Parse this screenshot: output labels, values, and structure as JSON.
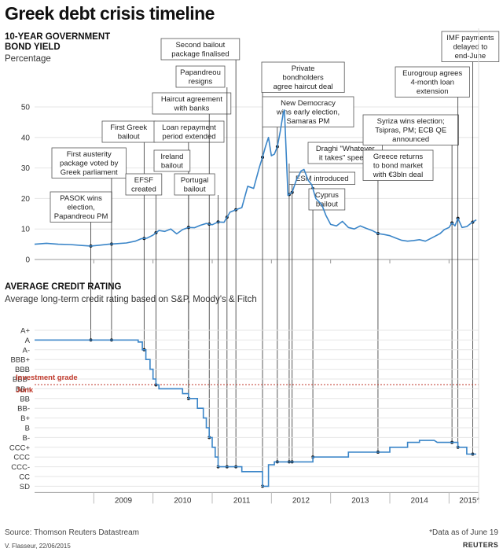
{
  "title": "Greek debt crisis timeline",
  "yield_panel": {
    "heading_line1": "10-YEAR GOVERNMENT",
    "heading_line2": "BOND YIELD",
    "unit": "Percentage"
  },
  "rating_panel": {
    "heading": "AVERAGE CREDIT RATING",
    "subheading": "Average long-term credit rating based on S&P, Moody's & Fitch",
    "investment_grade_label": "Investment grade",
    "junk_label": "Junk"
  },
  "source": "Source: Thomson Reuters Datastream",
  "data_note": "*Data as of June 19",
  "credit": "V. Flasseur, 22/06/2015",
  "logo_text": "REUTERS",
  "colors": {
    "line": "#3a85c8",
    "threshold": "#c0392b",
    "annotation": "#333333",
    "grid": "#e6e6e6"
  },
  "chart_data": [
    {
      "type": "line",
      "title": "10-YEAR GOVERNMENT BOND YIELD",
      "ylabel": "Percentage",
      "yticks": [
        0,
        10,
        20,
        30,
        40,
        50
      ],
      "ylim": [
        0,
        50
      ],
      "xlim": [
        2008.0,
        2015.5
      ],
      "xticks": [
        "2009",
        "2010",
        "2011",
        "2012",
        "2013",
        "2014",
        "2015*"
      ],
      "series": [
        {
          "values": [
            [
              2008.0,
              5.0
            ],
            [
              2008.2,
              5.3
            ],
            [
              2008.4,
              5.0
            ],
            [
              2008.6,
              4.9
            ],
            [
              2008.8,
              4.6
            ],
            [
              2008.95,
              4.4
            ],
            [
              2009.1,
              4.7
            ],
            [
              2009.25,
              5.0
            ],
            [
              2009.4,
              5.2
            ],
            [
              2009.55,
              5.4
            ],
            [
              2009.7,
              6.0
            ],
            [
              2009.8,
              6.8
            ],
            [
              2009.9,
              7.0
            ],
            [
              2010.0,
              8.0
            ],
            [
              2010.1,
              9.5
            ],
            [
              2010.2,
              9.2
            ],
            [
              2010.3,
              10.0
            ],
            [
              2010.4,
              8.4
            ],
            [
              2010.5,
              9.8
            ],
            [
              2010.6,
              10.5
            ],
            [
              2010.7,
              10.4
            ],
            [
              2010.8,
              11.2
            ],
            [
              2010.9,
              11.8
            ],
            [
              2011.0,
              11.4
            ],
            [
              2011.1,
              12.3
            ],
            [
              2011.2,
              12.2
            ],
            [
              2011.3,
              15.5
            ],
            [
              2011.4,
              16.3
            ],
            [
              2011.5,
              17.0
            ],
            [
              2011.6,
              24.0
            ],
            [
              2011.7,
              23.3
            ],
            [
              2011.8,
              30.5
            ],
            [
              2011.85,
              33.5
            ],
            [
              2011.9,
              37.0
            ],
            [
              2011.95,
              40.0
            ],
            [
              2012.0,
              34.0
            ],
            [
              2012.05,
              34.5
            ],
            [
              2012.1,
              37.0
            ],
            [
              2012.15,
              42.0
            ],
            [
              2012.2,
              48.0
            ],
            [
              2012.22,
              49.0
            ],
            [
              2012.28,
              21.0
            ],
            [
              2012.35,
              22.0
            ],
            [
              2012.42,
              26.0
            ],
            [
              2012.5,
              29.0
            ],
            [
              2012.55,
              29.5
            ],
            [
              2012.62,
              26.0
            ],
            [
              2012.68,
              24.5
            ],
            [
              2012.75,
              20.0
            ],
            [
              2012.85,
              18.0
            ],
            [
              2012.92,
              14.5
            ],
            [
              2013.0,
              11.5
            ],
            [
              2013.1,
              11.0
            ],
            [
              2013.2,
              12.5
            ],
            [
              2013.3,
              10.5
            ],
            [
              2013.4,
              10.0
            ],
            [
              2013.5,
              11.0
            ],
            [
              2013.6,
              10.2
            ],
            [
              2013.7,
              9.5
            ],
            [
              2013.8,
              8.5
            ],
            [
              2013.9,
              8.2
            ],
            [
              2014.0,
              7.8
            ],
            [
              2014.1,
              7.0
            ],
            [
              2014.2,
              6.3
            ],
            [
              2014.3,
              6.0
            ],
            [
              2014.4,
              6.2
            ],
            [
              2014.5,
              6.5
            ],
            [
              2014.6,
              6.0
            ],
            [
              2014.65,
              6.5
            ],
            [
              2014.75,
              7.5
            ],
            [
              2014.85,
              8.5
            ],
            [
              2014.92,
              9.8
            ],
            [
              2015.0,
              10.5
            ],
            [
              2015.05,
              12.0
            ],
            [
              2015.1,
              11.0
            ],
            [
              2015.15,
              13.5
            ],
            [
              2015.22,
              10.5
            ],
            [
              2015.3,
              10.8
            ],
            [
              2015.38,
              12.0
            ],
            [
              2015.46,
              13.0
            ]
          ]
        }
      ],
      "annotations": [
        {
          "x": 2008.95,
          "text": [
            "PASOK wins",
            "election,",
            "Papandreou PM"
          ]
        },
        {
          "x": 2009.3,
          "text": [
            "First austerity",
            "package voted by",
            "Greek parliament"
          ]
        },
        {
          "x": 2009.85,
          "text": [
            "First Greek",
            "bailout"
          ]
        },
        {
          "x": 2010.05,
          "text": [
            "EFSF",
            "created"
          ]
        },
        {
          "x": 2010.6,
          "text": [
            "Loan repayment",
            "period extended"
          ]
        },
        {
          "x": 2010.6,
          "text": [
            "Ireland",
            "bailout"
          ]
        },
        {
          "x": 2010.95,
          "text": [
            "Haircut agreement",
            "with banks"
          ]
        },
        {
          "x": 2011.1,
          "text": [
            "Portugal",
            "bailout"
          ]
        },
        {
          "x": 2011.25,
          "text": [
            "Papandreou",
            "resigns"
          ]
        },
        {
          "x": 2011.4,
          "text": [
            "Second bailout",
            "package finalised"
          ]
        },
        {
          "x": 2011.85,
          "text": [
            "Private",
            "bondholders",
            "agree haircut deal"
          ]
        },
        {
          "x": 2012.1,
          "text": [
            "New Democracy",
            "wins early election,",
            "Samaras PM"
          ]
        },
        {
          "x": 2012.3,
          "text": [
            "Draghi \"Whatever",
            "it takes\" speech"
          ]
        },
        {
          "x": 2012.35,
          "text": [
            "ESM introduced"
          ]
        },
        {
          "x": 2012.7,
          "text": [
            "Cyprus",
            "bailout"
          ]
        },
        {
          "x": 2013.8,
          "text": [
            "Greece returns",
            "to bond market",
            "with €3bln deal"
          ]
        },
        {
          "x": 2015.05,
          "text": [
            "Syriza wins election;",
            "Tsipras, PM; ECB QE",
            "announced"
          ]
        },
        {
          "x": 2015.15,
          "text": [
            "Eurogroup agrees",
            "4-month loan",
            "extension"
          ]
        },
        {
          "x": 2015.4,
          "text": [
            "IMF payments",
            "delayed to",
            "end-June"
          ]
        }
      ]
    },
    {
      "type": "line",
      "title": "AVERAGE CREDIT RATING",
      "subtitle": "Average long-term credit rating based on S&P, Moody's & Fitch",
      "yticks": [
        "A+",
        "A",
        "A-",
        "BBB+",
        "BBB",
        "BBB-",
        "BB+",
        "BB",
        "BB-",
        "B+",
        "B",
        "B-",
        "CCC+",
        "CCC",
        "CCC-",
        "CC",
        "SD"
      ],
      "threshold": {
        "between": [
          "BBB-",
          "BB+"
        ],
        "upper_label": "Investment grade",
        "lower_label": "Junk"
      },
      "xlim": [
        2008.0,
        2015.5
      ],
      "xticks": [
        "2009",
        "2010",
        "2011",
        "2012",
        "2013",
        "2014",
        "2015*"
      ],
      "series": [
        {
          "values": [
            [
              2008.0,
              1.0
            ],
            [
              2009.75,
              1.0
            ],
            [
              2009.75,
              1.2
            ],
            [
              2009.82,
              1.2
            ],
            [
              2009.82,
              2.0
            ],
            [
              2009.88,
              2.0
            ],
            [
              2009.88,
              3.0
            ],
            [
              2009.95,
              3.0
            ],
            [
              2009.95,
              4.0
            ],
            [
              2010.0,
              4.0
            ],
            [
              2010.0,
              5.0
            ],
            [
              2010.05,
              5.0
            ],
            [
              2010.05,
              5.6
            ],
            [
              2010.1,
              5.6
            ],
            [
              2010.1,
              6.0
            ],
            [
              2010.5,
              6.0
            ],
            [
              2010.5,
              6.5
            ],
            [
              2010.6,
              6.5
            ],
            [
              2010.6,
              7.0
            ],
            [
              2010.75,
              7.0
            ],
            [
              2010.75,
              8.0
            ],
            [
              2010.85,
              8.0
            ],
            [
              2010.85,
              9.0
            ],
            [
              2010.9,
              9.0
            ],
            [
              2010.9,
              10.0
            ],
            [
              2010.95,
              10.0
            ],
            [
              2010.95,
              11.0
            ],
            [
              2011.0,
              11.0
            ],
            [
              2011.0,
              12.0
            ],
            [
              2011.05,
              12.0
            ],
            [
              2011.05,
              13.0
            ],
            [
              2011.1,
              13.0
            ],
            [
              2011.1,
              14.0
            ],
            [
              2011.5,
              14.0
            ],
            [
              2011.5,
              14.5
            ],
            [
              2011.85,
              14.5
            ],
            [
              2011.85,
              16.0
            ],
            [
              2011.95,
              16.0
            ],
            [
              2011.95,
              13.8
            ],
            [
              2012.05,
              13.8
            ],
            [
              2012.05,
              13.5
            ],
            [
              2012.7,
              13.5
            ],
            [
              2012.7,
              13.0
            ],
            [
              2013.3,
              13.0
            ],
            [
              2013.3,
              12.5
            ],
            [
              2014.0,
              12.5
            ],
            [
              2014.0,
              12.0
            ],
            [
              2014.3,
              12.0
            ],
            [
              2014.3,
              11.5
            ],
            [
              2014.5,
              11.5
            ],
            [
              2014.5,
              11.3
            ],
            [
              2014.7,
              11.3
            ],
            [
              2014.75,
              11.3
            ],
            [
              2014.8,
              11.5
            ],
            [
              2015.15,
              11.5
            ],
            [
              2015.15,
              12.0
            ],
            [
              2015.3,
              12.0
            ],
            [
              2015.3,
              12.7
            ],
            [
              2015.46,
              12.7
            ]
          ]
        }
      ]
    }
  ]
}
